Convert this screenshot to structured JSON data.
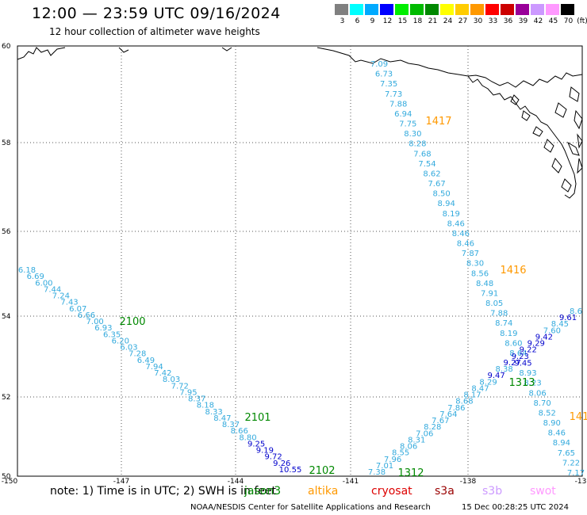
{
  "header": {
    "title": "12:00 — 23:59 UTC 09/16/2024",
    "subtitle": "12 hour collection of altimeter wave heights"
  },
  "legend": {
    "unit": "(ft)",
    "colors": [
      "#808080",
      "#00ffff",
      "#00aaff",
      "#0000ff",
      "#00ee00",
      "#00bb00",
      "#008800",
      "#ffff00",
      "#ffcc00",
      "#ff9900",
      "#ff0000",
      "#cc0000",
      "#990099",
      "#cc99ff",
      "#ff99ff",
      "#000000"
    ],
    "labels": [
      "3",
      "6",
      "9",
      "12",
      "15",
      "18",
      "21",
      "24",
      "27",
      "30",
      "33",
      "36",
      "39",
      "42",
      "45",
      "70"
    ]
  },
  "map": {
    "lat_labels": [
      "60",
      "58",
      "56",
      "54",
      "52",
      "50"
    ],
    "lon_labels": [
      "-150",
      "-147",
      "-144",
      "-141",
      "-138",
      "-13"
    ],
    "colors": {
      "cyan": "#33aadd",
      "blue": "#0000cc",
      "green": "#008800",
      "orange": "#ff9900"
    },
    "times": [
      {
        "text": "2100",
        "c": "green"
      },
      {
        "text": "2101",
        "c": "green"
      },
      {
        "text": "2102",
        "c": "green"
      },
      {
        "text": "1312",
        "c": "green"
      },
      {
        "text": "1313",
        "c": "green"
      },
      {
        "text": "1417",
        "c": "orange"
      },
      {
        "text": "1416",
        "c": "orange"
      },
      {
        "text": "141",
        "c": "orange"
      }
    ],
    "track1": [
      {
        "v": "6.18",
        "c": "cyan"
      },
      {
        "v": "6.69",
        "c": "cyan"
      },
      {
        "v": "6.00",
        "c": "cyan"
      },
      {
        "v": "7.44",
        "c": "cyan"
      },
      {
        "v": "7.24",
        "c": "cyan"
      },
      {
        "v": "7.43",
        "c": "cyan"
      },
      {
        "v": "6.07",
        "c": "cyan"
      },
      {
        "v": "6.66",
        "c": "cyan"
      },
      {
        "v": "7.00",
        "c": "cyan"
      },
      {
        "v": "6.93",
        "c": "cyan"
      },
      {
        "v": "6.35",
        "c": "cyan"
      },
      {
        "v": "6.20",
        "c": "cyan"
      },
      {
        "v": "6.03",
        "c": "cyan"
      },
      {
        "v": "7.28",
        "c": "cyan"
      },
      {
        "v": "6.49",
        "c": "cyan"
      },
      {
        "v": "7.94",
        "c": "cyan"
      },
      {
        "v": "7.42",
        "c": "cyan"
      },
      {
        "v": "8.03",
        "c": "cyan"
      },
      {
        "v": "7.72",
        "c": "cyan"
      },
      {
        "v": "7.95",
        "c": "cyan"
      },
      {
        "v": "8.37",
        "c": "cyan"
      },
      {
        "v": "8.18",
        "c": "cyan"
      },
      {
        "v": "8.33",
        "c": "cyan"
      },
      {
        "v": "8.47",
        "c": "cyan"
      },
      {
        "v": "8.37",
        "c": "cyan"
      },
      {
        "v": "8.66",
        "c": "cyan"
      },
      {
        "v": "8.80",
        "c": "cyan"
      },
      {
        "v": "9.25",
        "c": "blue"
      },
      {
        "v": "9.19",
        "c": "blue"
      },
      {
        "v": "9.72",
        "c": "blue"
      },
      {
        "v": "9.26",
        "c": "blue"
      },
      {
        "v": "10.55",
        "c": "blue"
      }
    ],
    "track2": [
      {
        "v": "7.09",
        "c": "cyan"
      },
      {
        "v": "6.73",
        "c": "cyan"
      },
      {
        "v": "7.35",
        "c": "cyan"
      },
      {
        "v": "7.73",
        "c": "cyan"
      },
      {
        "v": "7.88",
        "c": "cyan"
      },
      {
        "v": "6.94",
        "c": "cyan"
      },
      {
        "v": "7.75",
        "c": "cyan"
      },
      {
        "v": "8.30",
        "c": "cyan"
      },
      {
        "v": "8.28",
        "c": "cyan"
      },
      {
        "v": "7.68",
        "c": "cyan"
      },
      {
        "v": "7.54",
        "c": "cyan"
      },
      {
        "v": "8.62",
        "c": "cyan"
      },
      {
        "v": "7.67",
        "c": "cyan"
      },
      {
        "v": "8.50",
        "c": "cyan"
      },
      {
        "v": "8.94",
        "c": "cyan"
      },
      {
        "v": "8.19",
        "c": "cyan"
      },
      {
        "v": "8.46",
        "c": "cyan"
      },
      {
        "v": "8.46",
        "c": "cyan"
      },
      {
        "v": "8.46",
        "c": "cyan"
      },
      {
        "v": "7.87",
        "c": "cyan"
      },
      {
        "v": "8.30",
        "c": "cyan"
      },
      {
        "v": "8.56",
        "c": "cyan"
      },
      {
        "v": "8.48",
        "c": "cyan"
      },
      {
        "v": "7.91",
        "c": "cyan"
      },
      {
        "v": "8.05",
        "c": "cyan"
      },
      {
        "v": "7.88",
        "c": "cyan"
      },
      {
        "v": "8.74",
        "c": "cyan"
      },
      {
        "v": "8.19",
        "c": "cyan"
      },
      {
        "v": "8.60",
        "c": "cyan"
      },
      {
        "v": "8.64",
        "c": "cyan"
      },
      {
        "v": "9.45",
        "c": "blue"
      },
      {
        "v": "8.93",
        "c": "cyan"
      },
      {
        "v": "8.23",
        "c": "cyan"
      },
      {
        "v": "8.06",
        "c": "cyan"
      },
      {
        "v": "8.70",
        "c": "cyan"
      },
      {
        "v": "8.52",
        "c": "cyan"
      },
      {
        "v": "8.90",
        "c": "cyan"
      },
      {
        "v": "8.46",
        "c": "cyan"
      },
      {
        "v": "8.94",
        "c": "cyan"
      },
      {
        "v": "7.65",
        "c": "cyan"
      },
      {
        "v": "7.22",
        "c": "cyan"
      },
      {
        "v": "7.17",
        "c": "cyan"
      }
    ],
    "track3": [
      {
        "v": "7.38",
        "c": "cyan"
      },
      {
        "v": "7.01",
        "c": "cyan"
      },
      {
        "v": "7.96",
        "c": "cyan"
      },
      {
        "v": "8.55",
        "c": "cyan"
      },
      {
        "v": "8.06",
        "c": "cyan"
      },
      {
        "v": "8.31",
        "c": "cyan"
      },
      {
        "v": "7.06",
        "c": "cyan"
      },
      {
        "v": "8.28",
        "c": "cyan"
      },
      {
        "v": "7.67",
        "c": "cyan"
      },
      {
        "v": "7.64",
        "c": "cyan"
      },
      {
        "v": "7.86",
        "c": "cyan"
      },
      {
        "v": "8.68",
        "c": "cyan"
      },
      {
        "v": "8.17",
        "c": "cyan"
      },
      {
        "v": "8.47",
        "c": "cyan"
      },
      {
        "v": "8.29",
        "c": "cyan"
      },
      {
        "v": "9.47",
        "c": "blue"
      },
      {
        "v": "8.38",
        "c": "cyan"
      },
      {
        "v": "9.27",
        "c": "blue"
      },
      {
        "v": "9.23",
        "c": "blue"
      },
      {
        "v": "9.22",
        "c": "blue"
      },
      {
        "v": "9.29",
        "c": "blue"
      },
      {
        "v": "9.42",
        "c": "blue"
      },
      {
        "v": "7.60",
        "c": "cyan"
      },
      {
        "v": "8.45",
        "c": "cyan"
      },
      {
        "v": "9.61",
        "c": "blue"
      },
      {
        "v": "8.6",
        "c": "cyan"
      }
    ]
  },
  "footer": {
    "note": "note: 1) Time is in UTC; 2) SWH is in feet",
    "satellites": [
      {
        "name": "jason3",
        "color": "#008800"
      },
      {
        "name": "altika",
        "color": "#ff9900"
      },
      {
        "name": "cryosat",
        "color": "#dd0000"
      },
      {
        "name": "s3a",
        "color": "#990000"
      },
      {
        "name": "s3b",
        "color": "#cc99ff"
      },
      {
        "name": "swot",
        "color": "#ff99ff"
      }
    ],
    "credit": "NOAA/NESDIS Center for Satellite Applications and Research",
    "stamp": "15 Dec 00:28:25 UTC 2024"
  }
}
